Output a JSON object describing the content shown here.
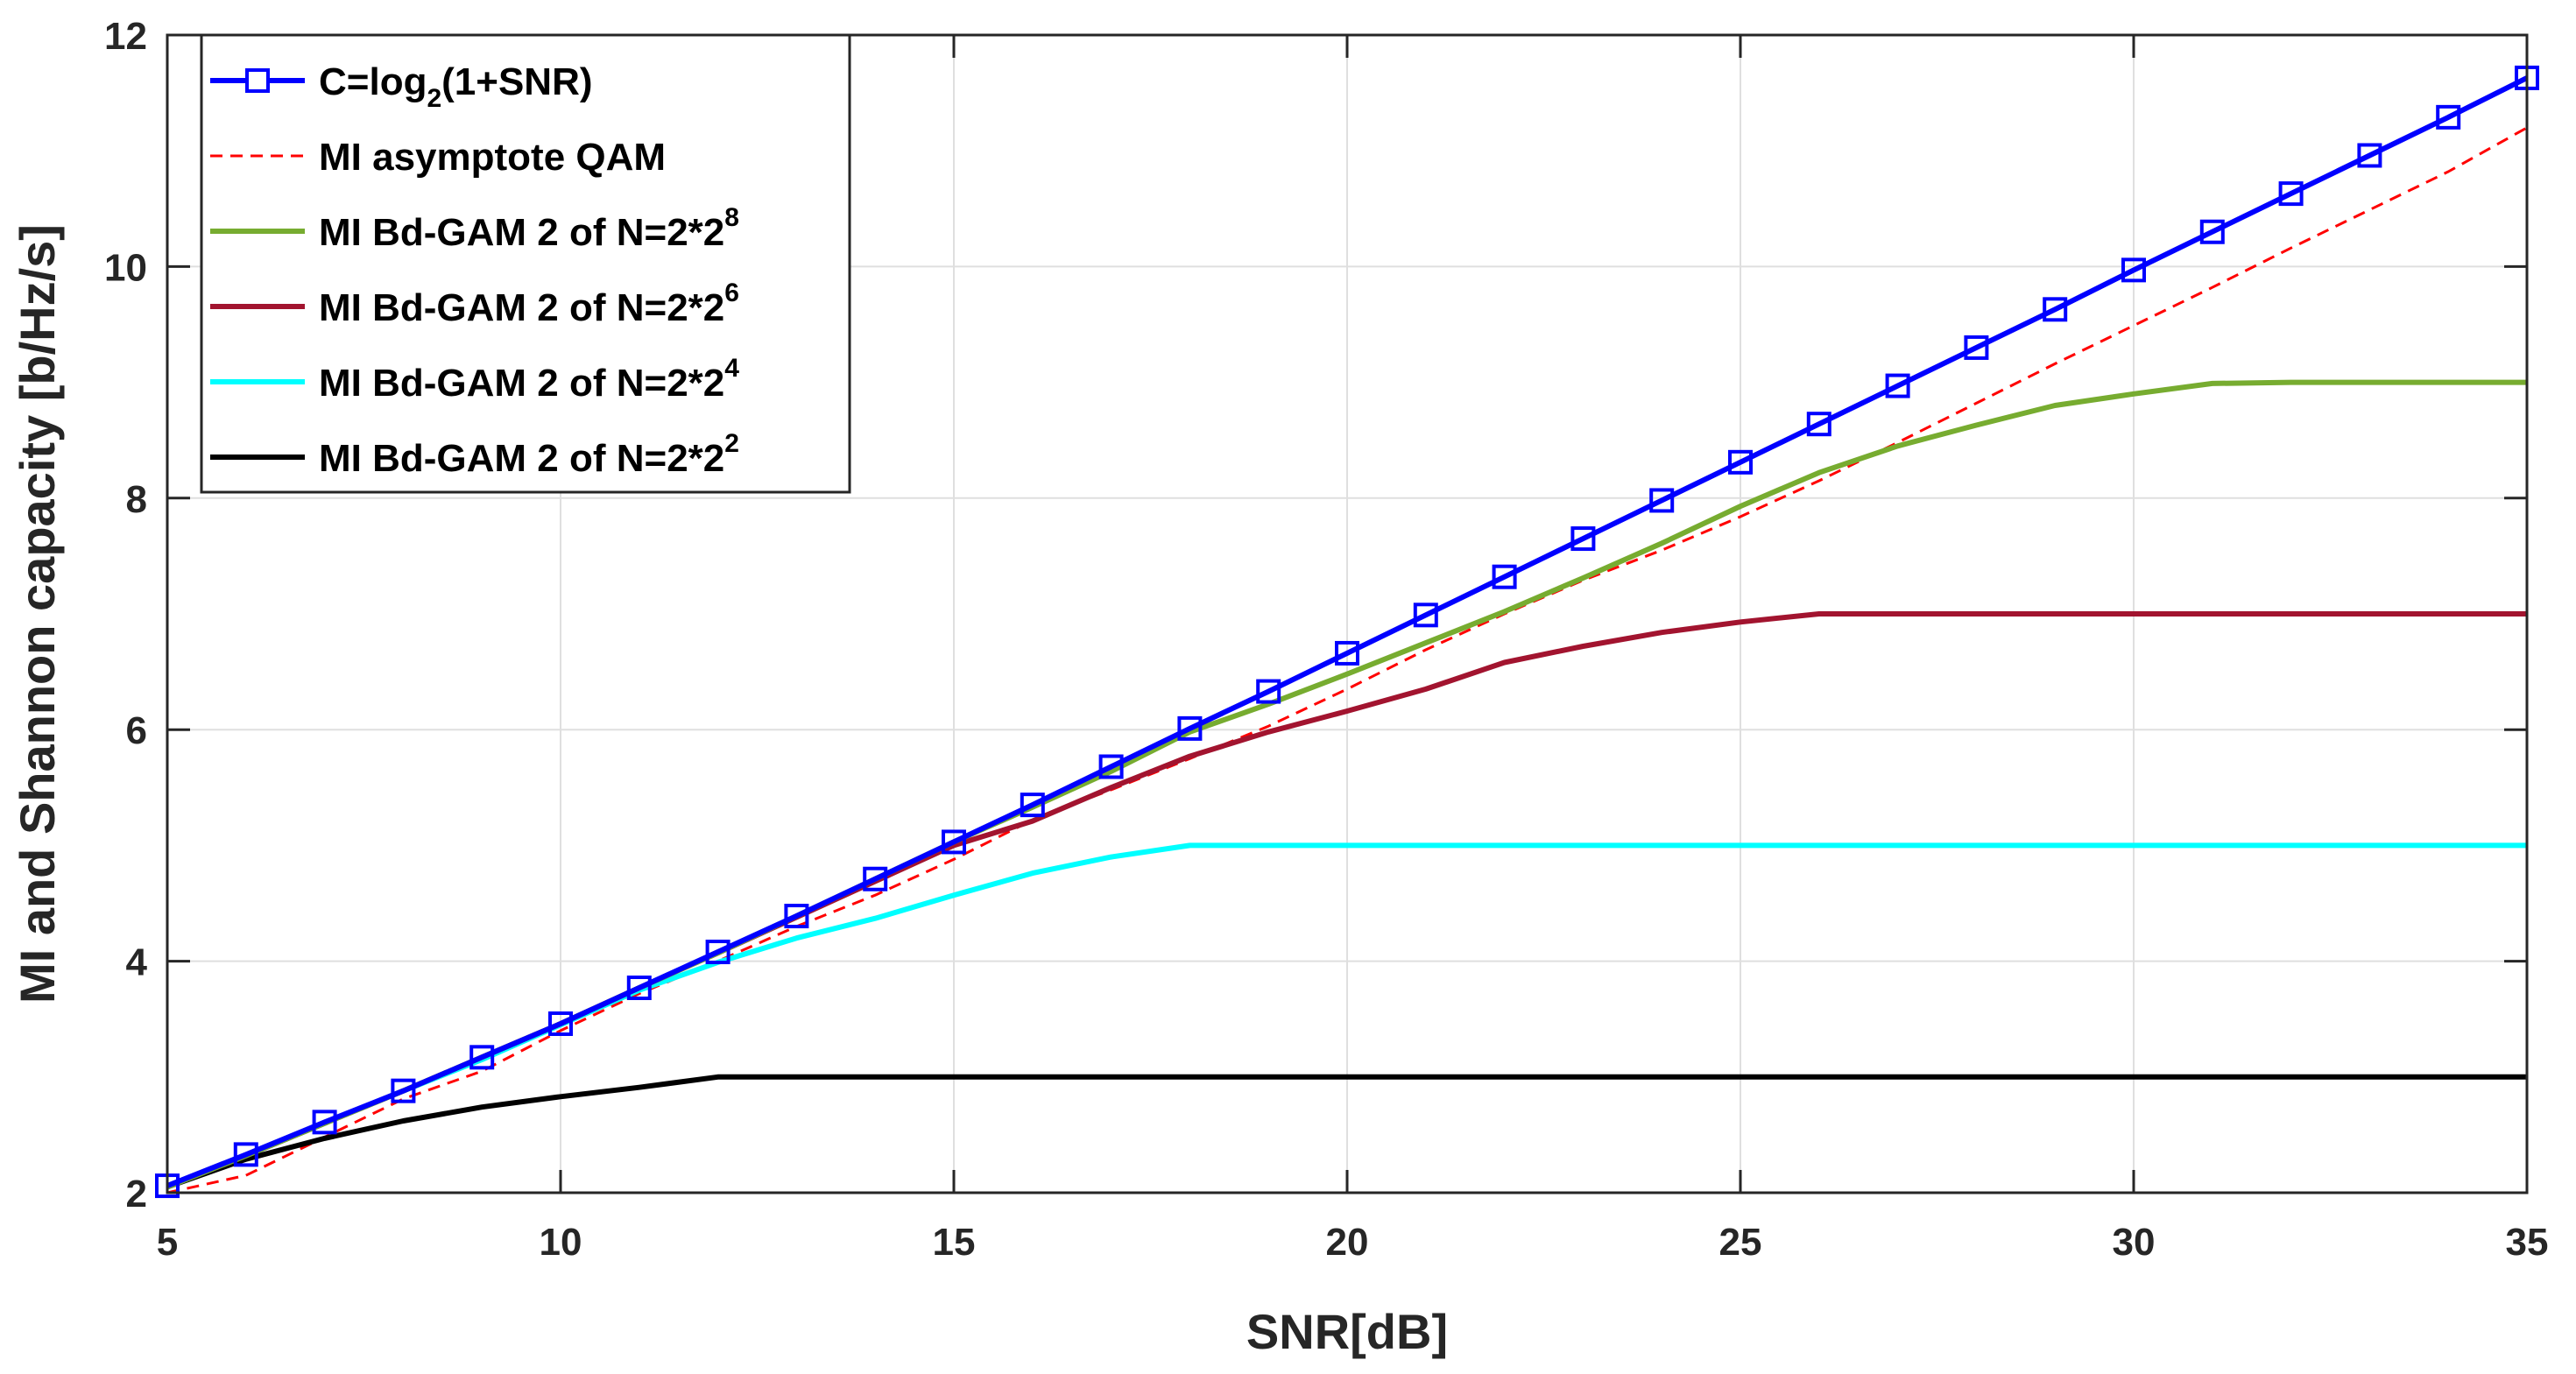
{
  "chart_data": {
    "type": "line",
    "xlabel": "SNR[dB]",
    "ylabel": "MI and Shannon capacity [b/Hz/s]",
    "xlim": [
      5,
      35
    ],
    "ylim": [
      2,
      12
    ],
    "xticks": [
      5,
      10,
      15,
      20,
      25,
      30,
      35
    ],
    "yticks": [
      2,
      4,
      6,
      8,
      10,
      12
    ],
    "grid": true,
    "legend_position": "top-left",
    "x": [
      5,
      6,
      7,
      8,
      9,
      10,
      11,
      12,
      13,
      14,
      15,
      16,
      17,
      18,
      19,
      20,
      21,
      22,
      23,
      24,
      25,
      26,
      27,
      28,
      29,
      30,
      31,
      32,
      33,
      34,
      35
    ],
    "series": [
      {
        "name": "C=log2(1+SNR)",
        "legend": {
          "base": "C=log",
          "sub": "2",
          "rest": "(1+SNR)",
          "sup": ""
        },
        "color": "#0000ff",
        "style": "solid",
        "marker": "square",
        "values": [
          2.06,
          2.33,
          2.61,
          2.88,
          3.17,
          3.46,
          3.77,
          4.08,
          4.39,
          4.71,
          5.03,
          5.35,
          5.68,
          6.01,
          6.33,
          6.66,
          6.99,
          7.32,
          7.65,
          7.98,
          8.31,
          8.64,
          8.97,
          9.3,
          9.63,
          9.97,
          10.3,
          10.63,
          10.96,
          11.29,
          11.63
        ]
      },
      {
        "name": "MI asymptote QAM",
        "legend": {
          "base": "MI asymptote QAM",
          "sub": "",
          "rest": "",
          "sup": ""
        },
        "color": "#ff0000",
        "style": "dashed",
        "marker": "none",
        "values": [
          2.0,
          2.15,
          2.48,
          2.81,
          3.05,
          3.4,
          3.72,
          4.0,
          4.3,
          4.57,
          4.88,
          5.22,
          5.48,
          5.75,
          6.03,
          6.35,
          6.69,
          7.0,
          7.29,
          7.55,
          7.84,
          8.15,
          8.48,
          8.82,
          9.16,
          9.49,
          9.82,
          10.16,
          10.49,
          10.82,
          11.2
        ]
      },
      {
        "name": "MI Bd-GAM 2 of N=2*2^8",
        "legend": {
          "base": "MI Bd-GAM 2 of N=2*2",
          "sub": "",
          "rest": "",
          "sup": "8"
        },
        "color": "#77ac30",
        "style": "solid",
        "marker": "none",
        "values": [
          2.05,
          2.32,
          2.6,
          2.88,
          3.17,
          3.46,
          3.77,
          4.07,
          4.39,
          4.71,
          5.03,
          5.33,
          5.64,
          5.98,
          6.22,
          6.48,
          6.75,
          7.02,
          7.31,
          7.61,
          7.93,
          8.22,
          8.45,
          8.63,
          8.8,
          8.9,
          8.99,
          9.0,
          9.0,
          9.0,
          9.0
        ]
      },
      {
        "name": "MI Bd-GAM 2 of N=2*2^6",
        "legend": {
          "base": "MI Bd-GAM 2 of N=2*2",
          "sub": "",
          "rest": "",
          "sup": "6"
        },
        "color": "#a2142f",
        "style": "solid",
        "marker": "none",
        "values": [
          2.05,
          2.32,
          2.6,
          2.88,
          3.17,
          3.46,
          3.77,
          4.07,
          4.38,
          4.69,
          5.0,
          5.21,
          5.5,
          5.77,
          5.98,
          6.16,
          6.35,
          6.58,
          6.72,
          6.84,
          6.93,
          7.0,
          7.0,
          7.0,
          7.0,
          7.0,
          7.0,
          7.0,
          7.0,
          7.0,
          7.0
        ]
      },
      {
        "name": "MI Bd-GAM 2 of N=2*2^4",
        "legend": {
          "base": "MI Bd-GAM 2 of N=2*2",
          "sub": "",
          "rest": "",
          "sup": "4"
        },
        "color": "#00ffff",
        "style": "solid",
        "marker": "none",
        "values": [
          2.05,
          2.32,
          2.6,
          2.88,
          3.15,
          3.45,
          3.75,
          3.99,
          4.2,
          4.37,
          4.57,
          4.76,
          4.9,
          5.0,
          5.0,
          5.0,
          5.0,
          5.0,
          5.0,
          5.0,
          5.0,
          5.0,
          5.0,
          5.0,
          5.0,
          5.0,
          5.0,
          5.0,
          5.0,
          5.0,
          5.0
        ]
      },
      {
        "name": "MI Bd-GAM 2 of N=2*2^2",
        "legend": {
          "base": "MI Bd-GAM 2 of N=2*2",
          "sub": "",
          "rest": "",
          "sup": "2"
        },
        "color": "#000000",
        "style": "solid",
        "marker": "none",
        "values": [
          2.05,
          2.29,
          2.47,
          2.62,
          2.74,
          2.83,
          2.91,
          3.0,
          3.0,
          3.0,
          3.0,
          3.0,
          3.0,
          3.0,
          3.0,
          3.0,
          3.0,
          3.0,
          3.0,
          3.0,
          3.0,
          3.0,
          3.0,
          3.0,
          3.0,
          3.0,
          3.0,
          3.0,
          3.0,
          3.0,
          3.0
        ]
      }
    ]
  }
}
